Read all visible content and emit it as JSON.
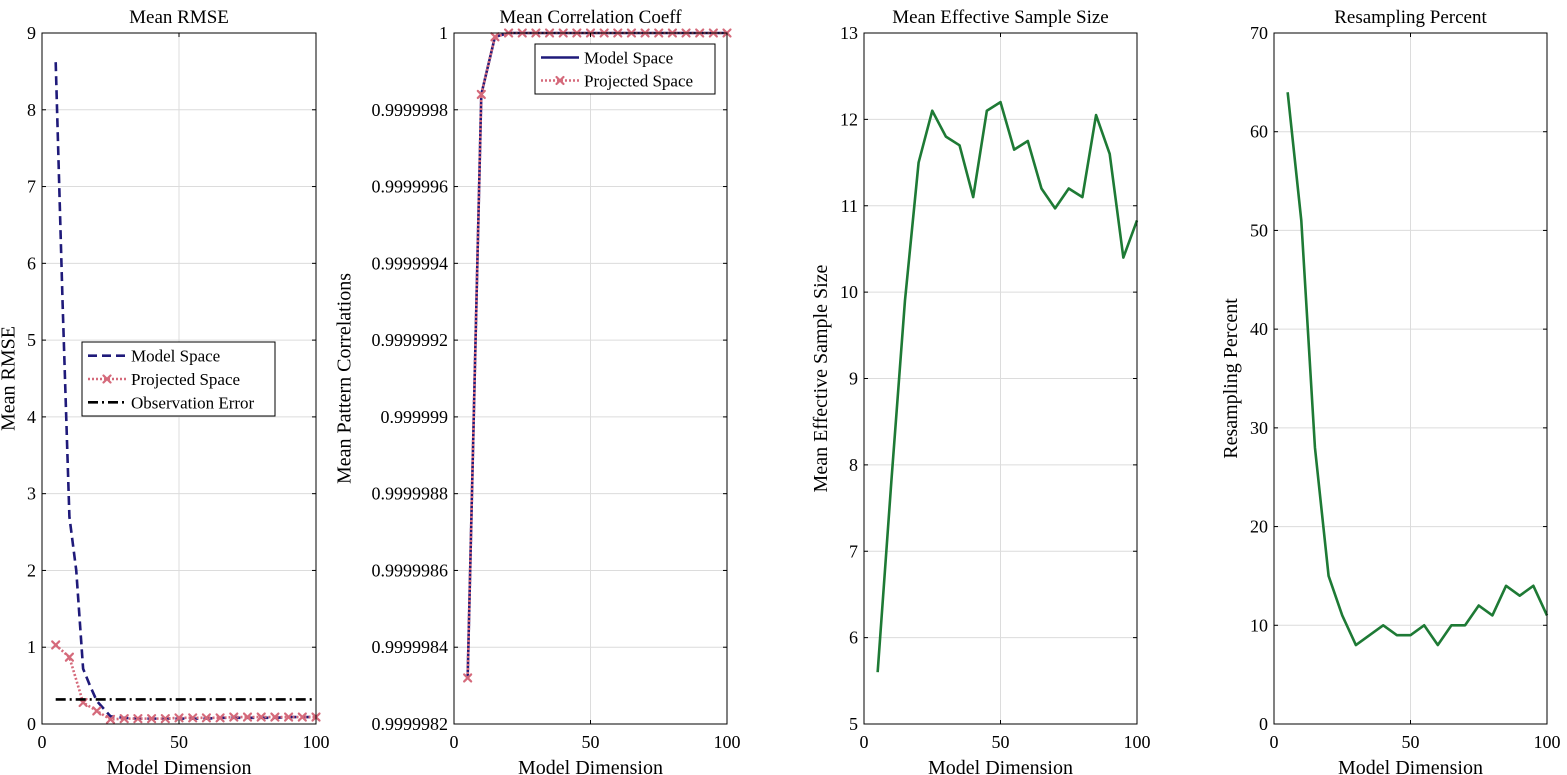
{
  "chart_data": [
    {
      "type": "line",
      "title": "Mean RMSE",
      "xlabel": "Model Dimension",
      "ylabel": "Mean RMSE",
      "xlim": [
        0,
        100
      ],
      "ylim": [
        0,
        9
      ],
      "xticks": [
        0,
        50,
        100
      ],
      "xtick_labels": [
        "0",
        "50",
        "100"
      ],
      "yticks": [
        0,
        1,
        2,
        3,
        4,
        5,
        6,
        7,
        8,
        9
      ],
      "ytick_labels": [
        "0",
        "1",
        "2",
        "3",
        "4",
        "5",
        "6",
        "7",
        "8",
        "9"
      ],
      "grid": true,
      "legend": "center-right",
      "series": [
        {
          "name": "Model Space",
          "color": "#1f1a7a",
          "style": "dashed",
          "marker": "none",
          "x": [
            5,
            7.5,
            10,
            12.5,
            15,
            17.5,
            20,
            22.5,
            25,
            27.5,
            30,
            35,
            40,
            45,
            50,
            55,
            60,
            65,
            70,
            75,
            80,
            85,
            90,
            95,
            100
          ],
          "y": [
            8.62,
            5.5,
            2.7,
            2.0,
            0.72,
            0.5,
            0.3,
            0.2,
            0.1,
            0.09,
            0.08,
            0.07,
            0.07,
            0.07,
            0.07,
            0.07,
            0.07,
            0.08,
            0.08,
            0.08,
            0.08,
            0.08,
            0.09,
            0.09,
            0.09
          ]
        },
        {
          "name": "Projected Space",
          "color": "#d56a7b",
          "style": "dotted",
          "marker": "x",
          "x": [
            5,
            10,
            15,
            20,
            25,
            30,
            35,
            40,
            45,
            50,
            55,
            60,
            65,
            70,
            75,
            80,
            85,
            90,
            95,
            100
          ],
          "y": [
            1.03,
            0.87,
            0.28,
            0.17,
            0.06,
            0.07,
            0.07,
            0.07,
            0.07,
            0.08,
            0.08,
            0.08,
            0.08,
            0.09,
            0.09,
            0.09,
            0.09,
            0.09,
            0.09,
            0.09
          ]
        },
        {
          "name": "Observation Error",
          "color": "#000000",
          "style": "dashdot",
          "marker": "none",
          "x": [
            5,
            100
          ],
          "y": [
            0.32,
            0.32
          ]
        }
      ]
    },
    {
      "type": "line",
      "title": "Mean Correlation Coeff",
      "xlabel": "Model Dimension",
      "ylabel": "Mean Pattern Correlations",
      "xlim": [
        0,
        100
      ],
      "ylim": [
        0.9999982,
        1
      ],
      "xticks": [
        0,
        50,
        100
      ],
      "xtick_labels": [
        "0",
        "50",
        "100"
      ],
      "yticks": [
        0.9999982,
        0.9999984,
        0.9999986,
        0.9999988,
        0.999999,
        0.9999992,
        0.9999994,
        0.9999996,
        0.9999998,
        1
      ],
      "ytick_labels": [
        "0.9999982",
        "0.9999984",
        "0.9999986",
        "0.9999988",
        "0.999999",
        "0.9999992",
        "0.9999994",
        "0.9999996",
        "0.9999998",
        "1"
      ],
      "grid": true,
      "legend": "top-right",
      "series": [
        {
          "name": "Model Space",
          "color": "#1f1a7a",
          "style": "solid",
          "marker": "none",
          "x": [
            5,
            10,
            15,
            20,
            25,
            30,
            35,
            40,
            45,
            50,
            55,
            60,
            65,
            70,
            75,
            80,
            85,
            90,
            95,
            100
          ],
          "y": [
            0.99999832,
            0.99999984,
            0.99999999,
            1.0,
            1.0,
            1.0,
            1.0,
            1.0,
            1.0,
            1.0,
            1.0,
            1.0,
            1.0,
            1.0,
            1.0,
            1.0,
            1.0,
            1.0,
            1.0,
            1.0
          ]
        },
        {
          "name": "Projected Space",
          "color": "#d56a7b",
          "style": "dotted",
          "marker": "x",
          "x": [
            5,
            10,
            15,
            20,
            25,
            30,
            35,
            40,
            45,
            50,
            55,
            60,
            65,
            70,
            75,
            80,
            85,
            90,
            95,
            100
          ],
          "y": [
            0.99999832,
            0.99999984,
            0.99999999,
            1.0,
            1.0,
            1.0,
            1.0,
            1.0,
            1.0,
            1.0,
            1.0,
            1.0,
            1.0,
            1.0,
            1.0,
            1.0,
            1.0,
            1.0,
            1.0,
            1.0
          ]
        }
      ]
    },
    {
      "type": "line",
      "title": "Mean Effective Sample Size",
      "xlabel": "Model Dimension",
      "ylabel": "Mean Effective Sample Size",
      "xlim": [
        0,
        100
      ],
      "ylim": [
        5,
        13
      ],
      "xticks": [
        0,
        50,
        100
      ],
      "xtick_labels": [
        "0",
        "50",
        "100"
      ],
      "yticks": [
        5,
        6,
        7,
        8,
        9,
        10,
        11,
        12,
        13
      ],
      "ytick_labels": [
        "5",
        "6",
        "7",
        "8",
        "9",
        "10",
        "11",
        "12",
        "13"
      ],
      "grid": true,
      "series": [
        {
          "color": "#1e7a35",
          "style": "solid",
          "marker": "none",
          "x": [
            5,
            10,
            15,
            20,
            25,
            30,
            35,
            40,
            45,
            50,
            55,
            60,
            65,
            70,
            75,
            80,
            85,
            90,
            95,
            100
          ],
          "y": [
            5.6,
            7.8,
            9.9,
            11.5,
            12.1,
            11.8,
            11.7,
            11.1,
            12.1,
            12.2,
            11.65,
            11.75,
            11.2,
            10.97,
            11.2,
            11.1,
            12.05,
            11.6,
            10.4,
            10.83
          ]
        }
      ]
    },
    {
      "type": "line",
      "title": "Resampling Percent",
      "xlabel": "Model Dimension",
      "ylabel": "Resampling Percent",
      "xlim": [
        0,
        100
      ],
      "ylim": [
        0,
        70
      ],
      "xticks": [
        0,
        50,
        100
      ],
      "xtick_labels": [
        "0",
        "50",
        "100"
      ],
      "yticks": [
        0,
        10,
        20,
        30,
        40,
        50,
        60,
        70
      ],
      "ytick_labels": [
        "0",
        "10",
        "20",
        "30",
        "40",
        "50",
        "60",
        "70"
      ],
      "grid": true,
      "series": [
        {
          "color": "#1e7a35",
          "style": "solid",
          "marker": "none",
          "x": [
            5,
            10,
            15,
            20,
            25,
            30,
            35,
            40,
            45,
            50,
            55,
            60,
            65,
            70,
            75,
            80,
            85,
            90,
            95,
            100
          ],
          "y": [
            64,
            51,
            28,
            15,
            11,
            8,
            9,
            10,
            9,
            9,
            10,
            8,
            10,
            10,
            12,
            11,
            14,
            13,
            14,
            11
          ]
        }
      ]
    }
  ]
}
